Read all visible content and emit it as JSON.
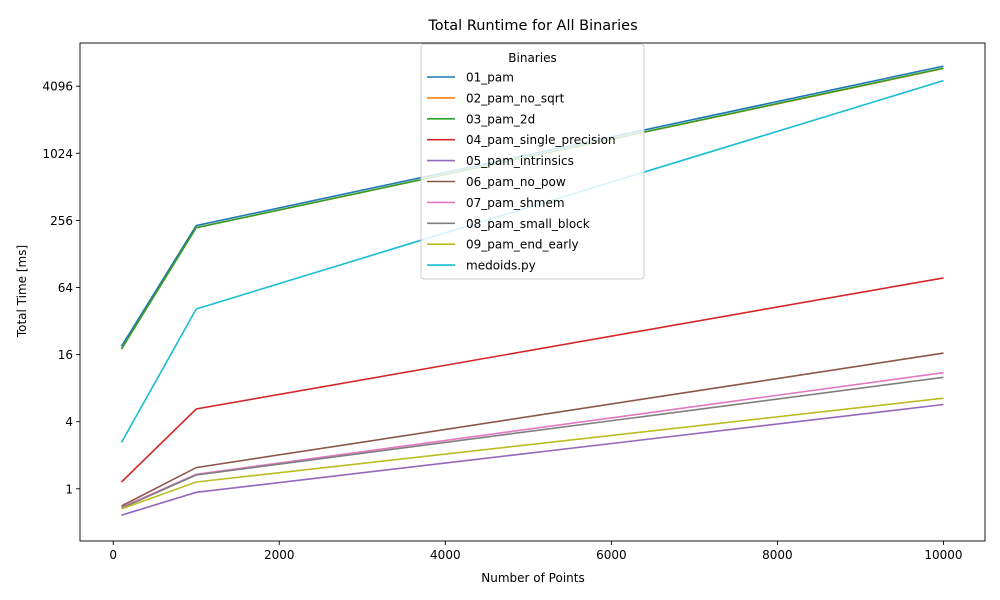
{
  "chart_data": {
    "type": "line",
    "title": "Total Runtime for All Binaries",
    "xlabel": "Number of Points",
    "ylabel": "Total Time [ms]",
    "x": [
      100,
      1000,
      10000
    ],
    "xlim": [
      -400,
      10500
    ],
    "ylim": [
      0.34,
      10000
    ],
    "y_scale": "log2",
    "x_ticks": [
      0,
      2000,
      4000,
      6000,
      8000,
      10000
    ],
    "x_tick_labels": [
      "0",
      "2000",
      "4000",
      "6000",
      "8000",
      "10000"
    ],
    "y_ticks": [
      1,
      4,
      16,
      64,
      256,
      1024,
      4096
    ],
    "y_tick_labels": [
      "1",
      "4",
      "16",
      "64",
      "256",
      "1024",
      "4096"
    ],
    "grid": false,
    "legend_title": "Binaries",
    "legend_position": "top-center",
    "series": [
      {
        "name": "01_pam",
        "color": "#1f77b4",
        "values": [
          19,
          230,
          6200
        ]
      },
      {
        "name": "02_pam_no_sqrt",
        "color": "#ff7f0e",
        "values": [
          18,
          220,
          5900
        ]
      },
      {
        "name": "03_pam_2d",
        "color": "#2ca02c",
        "values": [
          18,
          220,
          5950
        ]
      },
      {
        "name": "04_pam_single_precision",
        "color": "#d62728",
        "values": [
          1.15,
          5.2,
          78
        ]
      },
      {
        "name": "05_pam_intrinsics",
        "color": "#9467bd",
        "values": [
          0.58,
          0.93,
          5.7
        ]
      },
      {
        "name": "06_pam_no_pow",
        "color": "#8c564b",
        "values": [
          0.7,
          1.55,
          16.5
        ]
      },
      {
        "name": "07_pam_shmem",
        "color": "#e377c2",
        "values": [
          0.68,
          1.35,
          11
        ]
      },
      {
        "name": "08_pam_small_block",
        "color": "#7f7f7f",
        "values": [
          0.67,
          1.33,
          10
        ]
      },
      {
        "name": "09_pam_end_early",
        "color": "#bcbd22",
        "values": [
          0.66,
          1.15,
          6.5
        ]
      },
      {
        "name": "medoids.py",
        "color": "#17becf",
        "values": [
          2.6,
          41,
          4600
        ]
      }
    ]
  }
}
